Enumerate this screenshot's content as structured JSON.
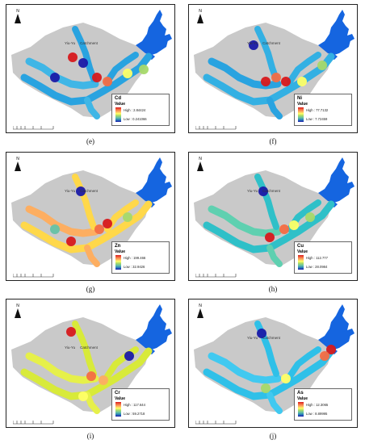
{
  "north_label": "N",
  "catchment_label": [
    "Yiu-Yu",
    "Catchment"
  ],
  "legend_value_label": "Value",
  "colors": {
    "catchment": "#c9c9c9",
    "reservoir": "#1565e0",
    "ramp_high": "#d7191c",
    "ramp_low": "#1a1aa8"
  },
  "panels": [
    {
      "id": "e",
      "caption": "(e)",
      "metal": "Cd",
      "high": "High : 2.84424",
      "low": "Low : 0.241066"
    },
    {
      "id": "f",
      "caption": "(f)",
      "metal": "Ni",
      "high": "High : 77.7132",
      "low": "Low : 7.72459"
    },
    {
      "id": "g",
      "caption": "(g)",
      "metal": "Zn",
      "high": "High : 199.466",
      "low": "Low : 32.9426"
    },
    {
      "id": "h",
      "caption": "(h)",
      "metal": "Cu",
      "high": "High : 112.777",
      "low": "Low : 28.0984"
    },
    {
      "id": "i",
      "caption": "(i)",
      "metal": "Cr",
      "high": "High : 117.644",
      "low": "Low : 59.2718"
    },
    {
      "id": "j",
      "caption": "(j)",
      "metal": "As",
      "high": "High : 12.3065",
      "low": "Low : 8.89995"
    }
  ]
}
